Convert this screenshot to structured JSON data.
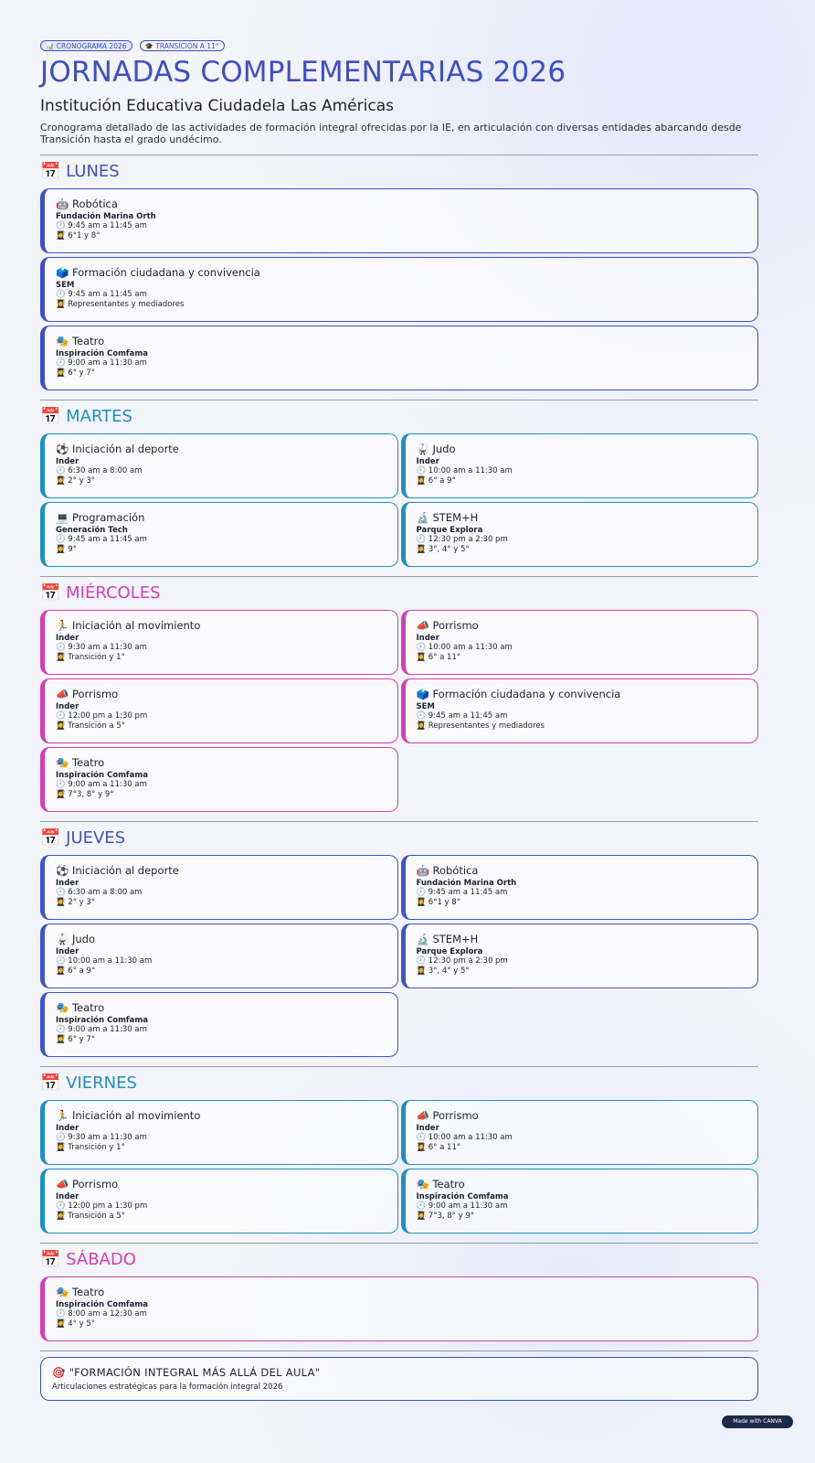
{
  "header": {
    "badges": [
      "📊 CRONOGRAMA 2026",
      "🎓 TRANSICIÓN A 11°"
    ],
    "title": "JORNADAS COMPLEMENTARIAS 2026",
    "subtitle": "Institución Educativa Ciudadela Las Américas",
    "description": "Cronograma detallado de las actividades de formación integral ofrecidas por la IE, en articulación con diversas entidades abarcando desde Transición hasta el grado undécimo."
  },
  "days": [
    {
      "name": "📅 LUNES",
      "color": "#3d4fc4",
      "columns": 1,
      "activities": [
        {
          "title": "🤖 Robótica",
          "entity": "Fundación Marina Orth",
          "time": "🕘 9:45 am a 11:45 am",
          "grades": "👩‍🎓 6°1 y 8°"
        },
        {
          "title": "🗳️ Formación ciudadana y convivencia",
          "entity": "SEM",
          "time": "🕘 9:45 am a 11:45 am",
          "grades": "👩‍🎓 Representantes y mediadores"
        },
        {
          "title": "🎭 Teatro",
          "entity": "Inspiración Comfama",
          "time": "🕘 9:00 am a 11:30 am",
          "grades": "👩‍🎓 6° y 7°"
        }
      ]
    },
    {
      "name": "📅 MARTES",
      "color": "#1e8fc2",
      "columns": 2,
      "activities": [
        {
          "title": "⚽ Iniciación al deporte",
          "entity": "Inder",
          "time": "🕘 6:30 am a 8:00 am",
          "grades": "👩‍🎓 2° y 3°"
        },
        {
          "title": "🥋 Judo",
          "entity": "Inder",
          "time": "🕘 10:00 am a 11:30 am",
          "grades": "👩‍🎓 6° a 9°"
        },
        {
          "title": "💻 Programación",
          "entity": "Generación Tech",
          "time": "🕘 9:45 am a 11:45 am",
          "grades": "👩‍🎓 9°"
        },
        {
          "title": "🔬 STEM+H",
          "entity": "Parque Explora",
          "time": "🕘 12:30 pm a 2:30 pm",
          "grades": "👩‍🎓 3°, 4° y 5°"
        }
      ]
    },
    {
      "name": "📅 MIÉRCOLES",
      "color": "#d43fb8",
      "columns": 2,
      "activities": [
        {
          "title": "🏃 Iniciación al movimiento",
          "entity": "Inder",
          "time": "🕘 9:30 am a 11:30 am",
          "grades": "👩‍🎓 Transición y 1°"
        },
        {
          "title": "📣 Porrismo",
          "entity": "Inder",
          "time": "🕘 10:00 am a 11:30 am",
          "grades": "👩‍🎓 6° a 11°"
        },
        {
          "title": "📣 Porrismo",
          "entity": "Inder",
          "time": "🕘 12:00 pm a 1:30 pm",
          "grades": "👩‍🎓 Transición a 5°"
        },
        {
          "title": "🗳️ Formación ciudadana y convivencia",
          "entity": "SEM",
          "time": "🕘 9:45 am a 11:45 am",
          "grades": "👩‍🎓 Representantes y mediadores"
        },
        {
          "title": "🎭 Teatro",
          "entity": "Inspiración Comfama",
          "time": "🕘 9:00 am a 11:30 am",
          "grades": "👩‍🎓 7°3, 8° y 9°"
        }
      ]
    },
    {
      "name": "📅 JUEVES",
      "color": "#3d55c8",
      "columns": 2,
      "activities": [
        {
          "title": "⚽ Iniciación al deporte",
          "entity": "Inder",
          "time": "🕘 6:30 am a 8:00 am",
          "grades": "👩‍🎓 2° y 3°"
        },
        {
          "title": "🤖 Robótica",
          "entity": "Fundación Marina Orth",
          "time": "🕘 9:45 am a 11:45 am",
          "grades": "👩‍🎓 6°1 y 8°"
        },
        {
          "title": "🥋 Judo",
          "entity": "Inder",
          "time": "🕘 10:00 am a 11:30 am",
          "grades": "👩‍🎓 6° a 9°"
        },
        {
          "title": "🔬 STEM+H",
          "entity": "Parque Explora",
          "time": "🕘 12:30 pm a 2:30 pm",
          "grades": "👩‍🎓 3°, 4° y 5°"
        },
        {
          "title": "🎭 Teatro",
          "entity": "Inspiración Comfama",
          "time": "🕘 9:00 am a 11:30 am",
          "grades": "👩‍🎓 6° y 7°"
        }
      ]
    },
    {
      "name": "📅 VIERNES",
      "color": "#1e8fc2",
      "columns": 2,
      "activities": [
        {
          "title": "🏃 Iniciación al movimiento",
          "entity": "Inder",
          "time": "🕘 9:30 am a 11:30 am",
          "grades": "👩‍🎓 Transición y 1°"
        },
        {
          "title": "📣 Porrismo",
          "entity": "Inder",
          "time": "🕘 10:00 am a 11:30 am",
          "grades": "👩‍🎓 6° a 11°"
        },
        {
          "title": "📣 Porrismo",
          "entity": "Inder",
          "time": "🕘 12:00 pm a 1:30 pm",
          "grades": "👩‍🎓 Transición a 5°"
        },
        {
          "title": "🎭 Teatro",
          "entity": "Inspiración Comfama",
          "time": "🕘 9:00 am a 11:30 am",
          "grades": "👩‍🎓 7°3, 8° y 9°"
        }
      ]
    },
    {
      "name": "📅 SÁBADO",
      "color": "#d43fb8",
      "columns": 1,
      "activities": [
        {
          "title": "🎭 Teatro",
          "entity": "Inspiración Comfama",
          "time": "🕘 8:00 am a 12:30 am",
          "grades": "👩‍🎓 4° y 5°"
        }
      ]
    }
  ],
  "footer": {
    "title": "🎯 \"FORMACIÓN INTEGRAL MÁS ALLÁ DEL AULA\"",
    "subtitle": "Articulaciones estratégicas para la formación integral 2026",
    "watermark": "Made with CANVA"
  }
}
